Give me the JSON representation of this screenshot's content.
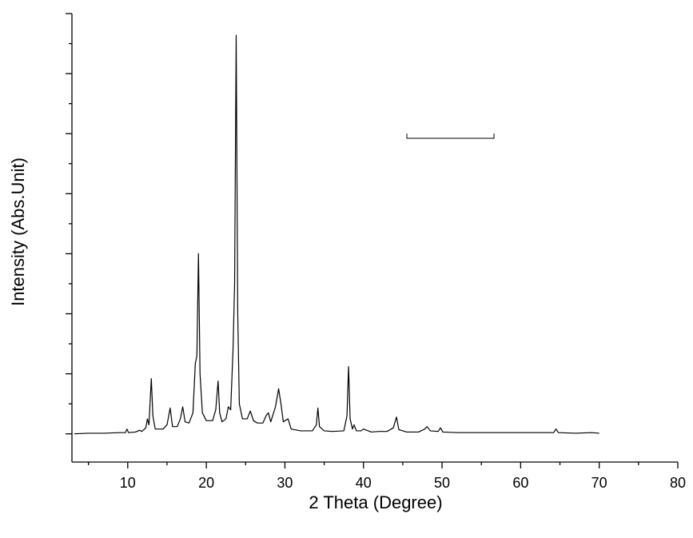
{
  "chart_data": {
    "type": "line",
    "xlabel": "2 Theta (Degree)",
    "ylabel": "Intensity (Abs.Unit)",
    "color": "#000000",
    "xlim": [
      2.9,
      80
    ],
    "xticks": [
      10,
      20,
      30,
      40,
      50,
      60,
      70,
      80
    ],
    "xticks_minor": [
      5,
      15,
      25,
      35,
      45,
      55,
      65,
      75
    ],
    "ylim": [
      -0.47,
      7
    ],
    "yticks": [
      0,
      1,
      2,
      3,
      4,
      5,
      6,
      7
    ],
    "yticks_minor": [
      0.5,
      1.5,
      2.5,
      3.5,
      4.5,
      5.5,
      6.5
    ],
    "x": [
      3.2,
      5,
      7,
      9,
      9.7,
      9.9,
      10.1,
      11,
      11.5,
      11.8,
      12.3,
      12.5,
      12.7,
      13.0,
      13.2,
      13.5,
      14.5,
      15.0,
      15.4,
      15.7,
      16.3,
      16.7,
      17.0,
      17.3,
      17.8,
      18.3,
      18.6,
      18.8,
      19.0,
      19.2,
      19.5,
      20.0,
      20.8,
      21.2,
      21.5,
      21.7,
      22.0,
      22.5,
      22.8,
      23.1,
      23.4,
      23.6,
      23.8,
      24.0,
      24.2,
      24.6,
      25.2,
      25.6,
      26.0,
      26.5,
      27.2,
      27.6,
      27.9,
      28.2,
      28.8,
      29.2,
      29.5,
      29.8,
      30.4,
      30.8,
      32,
      33.5,
      34.0,
      34.2,
      34.4,
      35,
      36,
      37.5,
      37.9,
      38.1,
      38.3,
      38.6,
      38.8,
      39.1,
      39.7,
      40,
      41,
      42,
      43,
      43.8,
      44.2,
      44.5,
      45.5,
      47,
      47.8,
      48.1,
      48.5,
      49.5,
      49.8,
      50.1,
      52,
      55,
      58,
      61,
      64.2,
      64.5,
      64.8,
      67,
      69,
      70
    ],
    "values": [
      0,
      0.01,
      0.01,
      0.02,
      0.02,
      0.08,
      0.02,
      0.03,
      0.06,
      0.04,
      0.1,
      0.25,
      0.15,
      0.92,
      0.3,
      0.08,
      0.08,
      0.15,
      0.43,
      0.12,
      0.12,
      0.25,
      0.45,
      0.2,
      0.18,
      0.35,
      1.17,
      1.3,
      3.0,
      1.0,
      0.35,
      0.22,
      0.22,
      0.4,
      0.88,
      0.35,
      0.2,
      0.25,
      0.45,
      0.4,
      1.4,
      2.5,
      6.64,
      2.0,
      0.5,
      0.25,
      0.25,
      0.38,
      0.22,
      0.18,
      0.18,
      0.3,
      0.35,
      0.2,
      0.45,
      0.75,
      0.5,
      0.2,
      0.25,
      0.08,
      0.05,
      0.05,
      0.15,
      0.43,
      0.12,
      0.05,
      0.04,
      0.05,
      0.3,
      1.12,
      0.25,
      0.08,
      0.15,
      0.05,
      0.05,
      0.08,
      0.03,
      0.04,
      0.04,
      0.1,
      0.28,
      0.07,
      0.03,
      0.03,
      0.08,
      0.12,
      0.05,
      0.04,
      0.1,
      0.03,
      0.02,
      0.02,
      0.02,
      0.02,
      0.02,
      0.08,
      0.02,
      0.01,
      0.02,
      0.01
    ]
  }
}
